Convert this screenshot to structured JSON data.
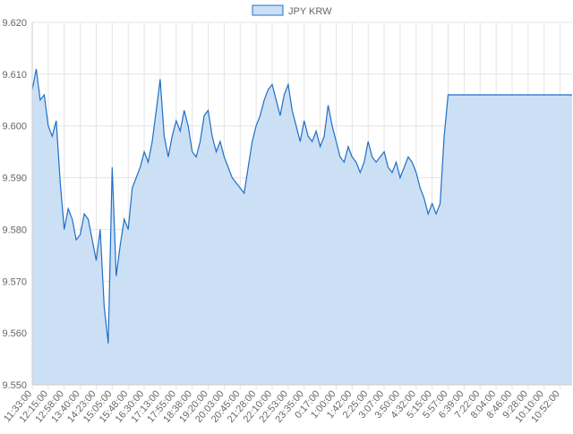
{
  "chart_data": {
    "type": "area",
    "series": [
      {
        "name": "JPY KRW",
        "color": "#1f6fc5",
        "fill": "#cce0f5",
        "values": [
          9.607,
          9.611,
          9.605,
          9.606,
          9.6,
          9.598,
          9.601,
          9.589,
          9.58,
          9.584,
          9.582,
          9.578,
          9.579,
          9.583,
          9.582,
          9.578,
          9.574,
          9.58,
          9.565,
          9.558,
          9.592,
          9.571,
          9.577,
          9.582,
          9.58,
          9.588,
          9.59,
          9.592,
          9.595,
          9.593,
          9.597,
          9.603,
          9.609,
          9.598,
          9.594,
          9.598,
          9.601,
          9.599,
          9.603,
          9.6,
          9.595,
          9.594,
          9.597,
          9.602,
          9.603,
          9.598,
          9.595,
          9.597,
          9.594,
          9.592,
          9.59,
          9.589,
          9.588,
          9.587,
          9.592,
          9.597,
          9.6,
          9.602,
          9.605,
          9.607,
          9.608,
          9.605,
          9.602,
          9.606,
          9.608,
          9.603,
          9.6,
          9.597,
          9.601,
          9.598,
          9.597,
          9.599,
          9.596,
          9.598,
          9.604,
          9.6,
          9.597,
          9.594,
          9.593,
          9.596,
          9.594,
          9.593,
          9.591,
          9.593,
          9.597,
          9.594,
          9.593,
          9.594,
          9.595,
          9.592,
          9.591,
          9.593,
          9.59,
          9.592,
          9.594,
          9.593,
          9.591,
          9.588,
          9.586,
          9.583,
          9.585,
          9.583,
          9.585,
          9.598,
          9.606,
          9.606,
          9.606,
          9.606,
          9.606,
          9.606,
          9.606,
          9.606,
          9.606,
          9.606,
          9.606,
          9.606,
          9.606,
          9.606,
          9.606,
          9.606,
          9.606,
          9.606,
          9.606,
          9.606,
          9.606,
          9.606,
          9.606,
          9.606,
          9.606,
          9.606,
          9.606,
          9.606,
          9.606,
          9.606,
          9.606,
          9.606
        ]
      }
    ],
    "categories": [
      "11:33:00",
      null,
      null,
      null,
      "12:15:00",
      null,
      null,
      null,
      "12:58:00",
      null,
      null,
      null,
      "13:40:00",
      null,
      null,
      null,
      "14:23:00",
      null,
      null,
      null,
      "15:05:00",
      null,
      null,
      null,
      "15:48:00",
      null,
      null,
      null,
      "16:30:00",
      null,
      null,
      null,
      "17:13:00",
      null,
      null,
      null,
      "17:55:00",
      null,
      null,
      null,
      "18:38:00",
      null,
      null,
      null,
      "19:20:00",
      null,
      null,
      null,
      "20:03:00",
      null,
      null,
      null,
      "20:45:00",
      null,
      null,
      null,
      "21:28:00",
      null,
      null,
      null,
      "22:10:00",
      null,
      null,
      null,
      "22:53:00",
      null,
      null,
      null,
      "23:35:00",
      null,
      null,
      null,
      "0:17:00",
      null,
      null,
      null,
      "1:00:00",
      null,
      null,
      null,
      "1:42:00",
      null,
      null,
      null,
      "2:25:00",
      null,
      null,
      null,
      "3:07:00",
      null,
      null,
      null,
      "3:50:00",
      null,
      null,
      null,
      "4:32:00",
      null,
      null,
      null,
      "5:15:00",
      null,
      null,
      null,
      "5:57:00",
      null,
      null,
      null,
      "6:39:00",
      null,
      null,
      null,
      "7:22:00",
      null,
      null,
      null,
      "8:04:00",
      null,
      null,
      null,
      "8:46:00",
      null,
      null,
      null,
      "9:28:00",
      null,
      null,
      null,
      "10:10:00",
      null,
      null,
      null,
      "10:52:00",
      null,
      null,
      null
    ],
    "ylim": [
      9.55,
      9.62
    ],
    "yticks": [
      {
        "value": 9.55,
        "label": "9.550"
      },
      {
        "value": 9.56,
        "label": "9.560"
      },
      {
        "value": 9.57,
        "label": "9.570"
      },
      {
        "value": 9.58,
        "label": "9.580"
      },
      {
        "value": 9.59,
        "label": "9.590"
      },
      {
        "value": 9.6,
        "label": "9.600"
      },
      {
        "value": 9.61,
        "label": "9.610"
      },
      {
        "value": 9.62,
        "label": "9.620"
      }
    ],
    "grid": true,
    "legend": "top"
  }
}
